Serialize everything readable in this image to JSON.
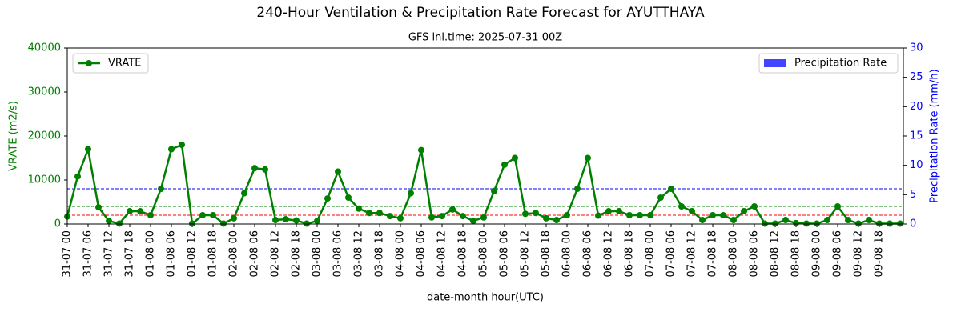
{
  "chart_data": {
    "type": "line",
    "title": "240-Hour Ventilation & Precipitation Rate Forecast for AYUTTHAYA",
    "subtitle": "GFS ini.time: 2025-07-31 00Z",
    "x_label": "date-month hour(UTC)",
    "y_label": "VRATE (m2/s)",
    "y2_label": "Precipitation Rate (mm/h)",
    "categories": [
      "31-07 00",
      null,
      "31-07 06",
      null,
      "31-07 12",
      null,
      "31-07 18",
      null,
      "01-08 00",
      null,
      "01-08 06",
      null,
      "01-08 12",
      null,
      "01-08 18",
      null,
      "02-08 00",
      null,
      "02-08 06",
      null,
      "02-08 12",
      null,
      "02-08 18",
      null,
      "03-08 00",
      null,
      "03-08 06",
      null,
      "03-08 12",
      null,
      "03-08 18",
      null,
      "04-08 00",
      null,
      "04-08 06",
      null,
      "04-08 12",
      null,
      "04-08 18",
      null,
      "05-08 00",
      null,
      "05-08 06",
      null,
      "05-08 12",
      null,
      "05-08 18",
      null,
      "06-08 00",
      null,
      "06-08 06",
      null,
      "06-08 12",
      null,
      "06-08 18",
      null,
      "07-08 00",
      null,
      "07-08 06",
      null,
      "07-08 12",
      null,
      "07-08 18",
      null,
      "08-08 00",
      null,
      "08-08 06",
      null,
      "08-08 12",
      null,
      "08-08 18",
      null,
      "09-08 00",
      null,
      "09-08 06",
      null,
      "09-08 12",
      null,
      "09-08 18",
      null,
      null
    ],
    "series": [
      {
        "name": "VRATE",
        "color": "#008000",
        "axis": "y",
        "values": [
          1700,
          10800,
          17000,
          3800,
          700,
          100,
          2900,
          2900,
          2000,
          8000,
          17000,
          18000,
          100,
          2000,
          2000,
          100,
          1300,
          7000,
          12700,
          12400,
          900,
          1100,
          800,
          100,
          700,
          5800,
          11900,
          6000,
          3500,
          2500,
          2500,
          1800,
          1300,
          7000,
          16800,
          1500,
          1800,
          3300,
          1800,
          700,
          1500,
          7500,
          13500,
          15000,
          2300,
          2500,
          1300,
          900,
          2000,
          8000,
          15000,
          1900,
          2900,
          2900,
          2000,
          2000,
          2000,
          6000,
          8000,
          4000,
          2900,
          900,
          2000,
          2000,
          900,
          2900,
          4000,
          100,
          100,
          900,
          200,
          100,
          100,
          900,
          4000,
          900,
          100,
          900,
          100,
          100,
          100
        ]
      },
      {
        "name": "Precipitation Rate",
        "color": "#4444ff",
        "axis": "y2",
        "values": [
          0,
          0,
          0,
          0,
          0,
          0,
          0,
          0,
          0,
          0,
          0,
          0,
          0,
          0,
          0,
          0,
          0,
          0,
          0,
          0,
          0,
          0,
          0,
          0,
          0,
          0,
          0,
          0,
          0,
          0,
          0,
          0,
          0,
          0,
          0,
          0,
          0,
          0,
          0,
          0,
          0,
          0,
          0,
          0,
          0,
          0,
          0,
          0,
          0,
          0,
          0,
          0,
          0,
          0,
          0,
          0,
          0,
          0,
          0,
          0,
          0,
          0,
          0,
          0,
          0,
          0,
          0,
          0,
          0,
          0,
          0,
          0,
          0,
          0,
          0,
          0,
          0,
          0,
          0,
          0,
          0
        ]
      }
    ],
    "ylim": [
      0,
      40000
    ],
    "yticks": [
      0,
      10000,
      20000,
      30000,
      40000
    ],
    "y2lim": [
      0,
      30
    ],
    "y2ticks": [
      0,
      5,
      10,
      15,
      20,
      25,
      30
    ],
    "reference_lines": [
      {
        "value": 2000,
        "color": "#ff0000"
      },
      {
        "value": 4000,
        "color": "#008000"
      },
      {
        "value": 8000,
        "color": "#0000ff"
      }
    ]
  }
}
